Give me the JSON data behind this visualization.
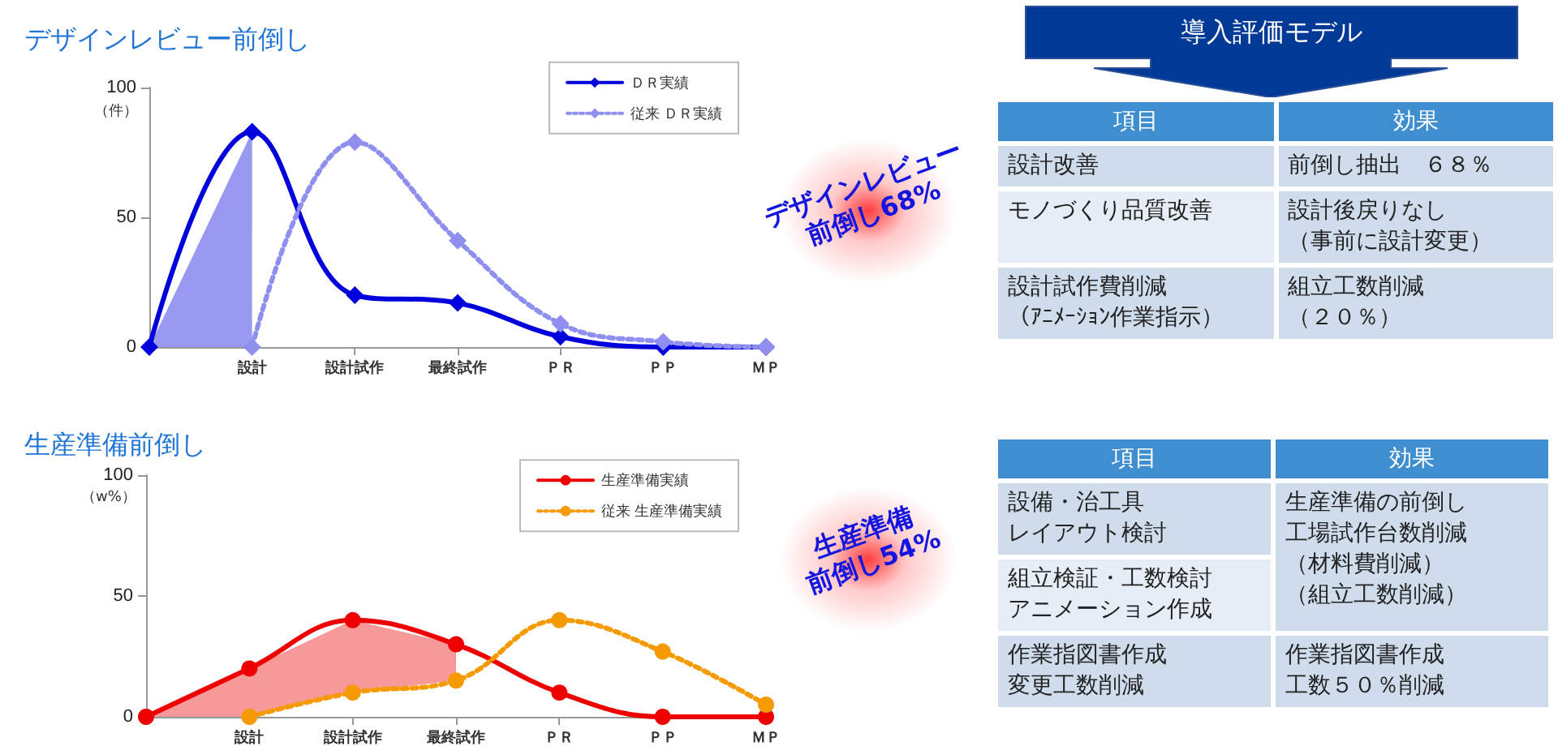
{
  "chart_data": [
    {
      "type": "line",
      "title": "デザインレビュー前倒し",
      "ylabel": "（件）",
      "categories": [
        null,
        "設計",
        "設計試作",
        "最終試作",
        "ＰＲ",
        "ＰＰ",
        "ＭＰ"
      ],
      "series": [
        {
          "name": "ＤＲ実績",
          "color": "#0000dd",
          "values": [
            0,
            83,
            20,
            17,
            4,
            0,
            0
          ],
          "lower": [
            0,
            0,
            null,
            null,
            null,
            null,
            null
          ],
          "upper": [
            0,
            83,
            null,
            null,
            null,
            null,
            null
          ]
        },
        {
          "name": "従来 ＤＲ実績",
          "color": "#8f8ff0",
          "line_style": "dotted",
          "values": [
            null,
            0,
            79,
            41,
            9,
            2,
            0
          ]
        }
      ],
      "ylim": [
        0,
        100
      ],
      "yticks": [
        0,
        50,
        100
      ],
      "legend": "top right",
      "marker": "diamond",
      "annotations": [
        "デザインレビュー前倒し68%"
      ]
    },
    {
      "type": "line",
      "title": "生産準備前倒し",
      "ylabel": "（w%）",
      "categories": [
        null,
        "設計",
        "設計試作",
        "最終試作",
        "ＰＲ",
        "ＰＰ",
        "ＭＰ"
      ],
      "series": [
        {
          "name": "生産準備実績",
          "color": "#ee0000",
          "values": [
            0,
            20,
            40,
            30,
            10,
            0,
            0
          ],
          "lower": [
            0,
            0,
            10,
            15,
            null,
            null,
            null
          ],
          "upper": [
            0,
            20,
            40,
            30,
            null,
            null,
            null
          ]
        },
        {
          "name": "従来 生産準備実績",
          "color": "#f59a00",
          "line_style": "dotted",
          "values": [
            null,
            0,
            10,
            15,
            40,
            27,
            5
          ]
        }
      ],
      "ylim": [
        0,
        100
      ],
      "yticks": [
        0,
        50,
        100
      ],
      "legend": "top right",
      "marker": "circle",
      "annotations": [
        "生産準備前倒し54%"
      ]
    },
    {
      "type": "other",
      "title": "導入評価モデル",
      "annotations": [
        "項目",
        "効果",
        "設計改善",
        "前倒し抽出　６８％",
        "モノづくり品質改善",
        "設計後戻りなし（事前に設計変更）",
        "設計試作費削減（ｱﾆﾒｰｼｮﾝ作業指示）",
        "組立工数削減（２０％）"
      ]
    },
    {
      "type": "other",
      "annotations": [
        "項目",
        "効果",
        "設備・治工具レイアウト検討",
        "生産準備の前倒し工場試作台数削減（材料費削減）（組立工数削減）",
        "組立検証・工数検討アニメーション作成",
        null,
        "作業指図書作成変更工数削減",
        "作業指図書作成工数５０％削減"
      ]
    }
  ]
}
